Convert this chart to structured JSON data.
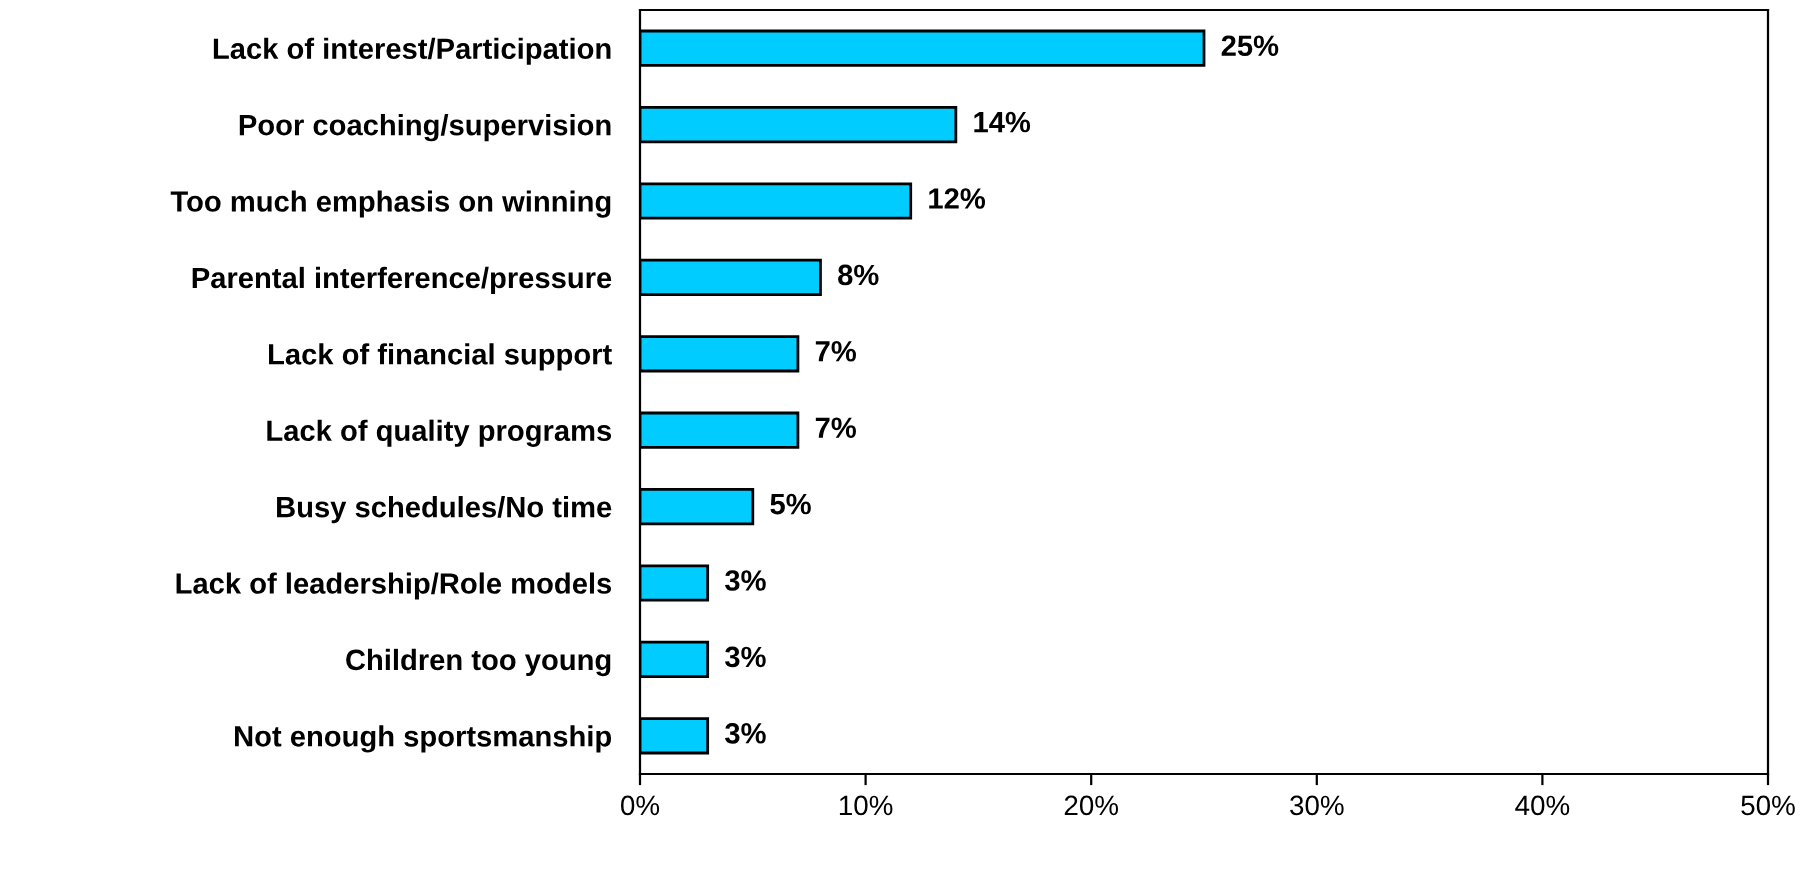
{
  "chart_data": {
    "type": "bar",
    "orientation": "horizontal",
    "categories": [
      "Lack of interest/Participation",
      "Poor coaching/supervision",
      "Too much emphasis on winning",
      "Parental interference/pressure",
      "Lack of financial support",
      "Lack of quality programs",
      "Busy schedules/No time",
      "Lack of leadership/Role models",
      "Children too young",
      "Not enough sportsmanship"
    ],
    "values": [
      25,
      14,
      12,
      8,
      7,
      7,
      5,
      3,
      3,
      3
    ],
    "value_labels": [
      "25%",
      "14%",
      "12%",
      "8%",
      "7%",
      "7%",
      "5%",
      "3%",
      "3%",
      "3%"
    ],
    "color": "#00ccff",
    "xlim": [
      0,
      50
    ],
    "xticks": [
      {
        "value": 0,
        "label": "0%"
      },
      {
        "value": 10,
        "label": "10%"
      },
      {
        "value": 20,
        "label": "20%"
      },
      {
        "value": 30,
        "label": "30%"
      },
      {
        "value": 40,
        "label": "40%"
      },
      {
        "value": 50,
        "label": "50%"
      }
    ],
    "grid": false,
    "legend": false
  }
}
